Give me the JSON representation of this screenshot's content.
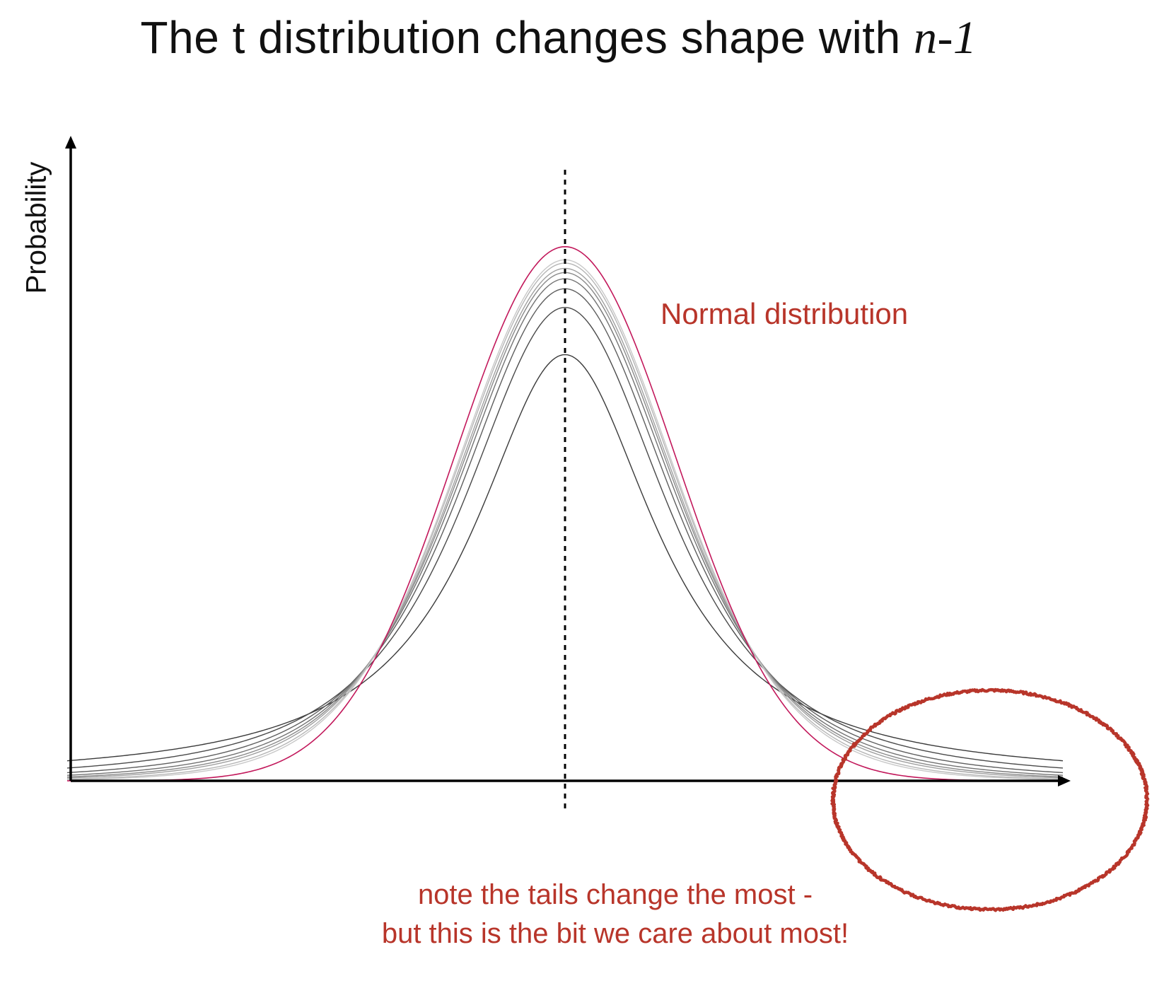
{
  "title": {
    "text": "The t distribution changes shape with",
    "math": "n-1"
  },
  "colors": {
    "normal_curve": "#c2185b",
    "annotation": "#b8352a",
    "axis": "#000000",
    "t_curves": [
      "#3a3a3a",
      "#4a4a4a",
      "#5e5e5e",
      "#737373",
      "#8a8a8a",
      "#a0a0a0",
      "#b6b6b6",
      "#c8c8c8"
    ]
  },
  "chart_data": {
    "type": "line",
    "title": "The t distribution changes shape with n-1",
    "xlabel": "",
    "ylabel": "Probability",
    "xlim": [
      -4.5,
      4.5
    ],
    "ylim": [
      0,
      0.43
    ],
    "grid": false,
    "x_tick_labels": false,
    "y_tick_labels": false,
    "center_line": {
      "x": 0,
      "style": "dotted"
    },
    "series": [
      {
        "name": "Normal distribution",
        "distribution": "normal",
        "mean": 0,
        "sd": 1
      },
      {
        "distribution": "t",
        "df": 1
      },
      {
        "distribution": "t",
        "df": 2
      },
      {
        "distribution": "t",
        "df": 3
      },
      {
        "distribution": "t",
        "df": 4
      },
      {
        "distribution": "t",
        "df": 5
      },
      {
        "distribution": "t",
        "df": 6
      },
      {
        "distribution": "t",
        "df": 8
      },
      {
        "distribution": "t",
        "df": 10
      }
    ],
    "annotations": [
      {
        "text": "Normal distribution",
        "target": "normal curve"
      },
      {
        "shape": "ellipse",
        "target": "right tail"
      },
      {
        "text": "note the tails change the most -"
      },
      {
        "text": "but this is the bit we care about most!"
      }
    ]
  },
  "labels": {
    "ylabel": "Probability",
    "normal": "Normal distribution",
    "note_line1": "note the tails change the most -",
    "note_line2": "but this is the bit we care about most!"
  }
}
